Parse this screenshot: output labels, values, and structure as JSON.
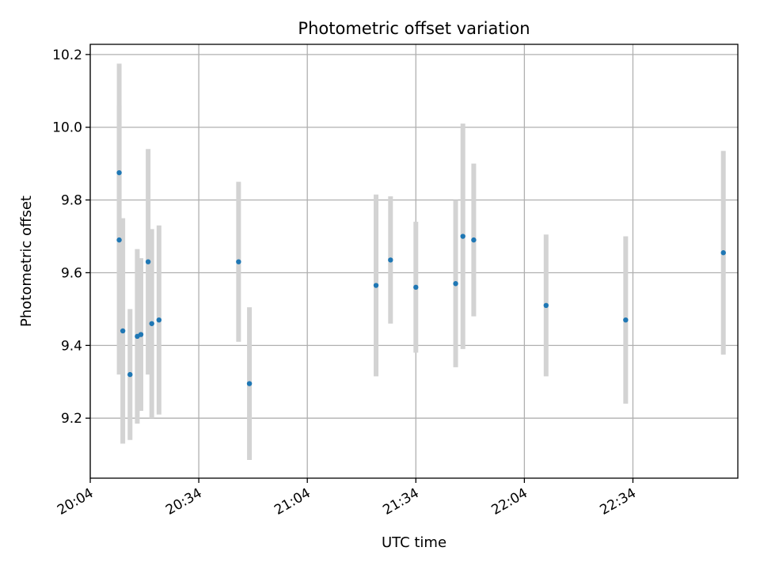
{
  "chart_data": {
    "type": "scatter",
    "title": "Photometric offset variation",
    "xlabel": "UTC time",
    "ylabel": "Photometric offset",
    "x_unit": "UTC time (HH:MM)",
    "xlim": [
      "20:04",
      "23:03"
    ],
    "ylim": [
      9.035,
      10.228
    ],
    "grid": true,
    "x_ticks": [
      "20:04",
      "20:34",
      "21:04",
      "21:34",
      "22:04",
      "22:34"
    ],
    "y_ticks": [
      9.2,
      9.4,
      9.6,
      9.8,
      10.0,
      10.2
    ],
    "y_tick_labels": [
      "9.2",
      "9.4",
      "9.6",
      "9.8",
      "10.0",
      "10.2"
    ],
    "colors": {
      "marker": "#1f77b4",
      "errorbar": "#d3d3d3",
      "grid": "#b0b0b0"
    },
    "series": [
      {
        "error_bars": true,
        "points": [
          {
            "x": "20:12",
            "y": 9.875,
            "err": 0.3
          },
          {
            "x": "20:12",
            "y": 9.69,
            "err": 0.37
          },
          {
            "x": "20:13",
            "y": 9.44,
            "err": 0.31
          },
          {
            "x": "20:15",
            "y": 9.32,
            "err": 0.18
          },
          {
            "x": "20:17",
            "y": 9.425,
            "err": 0.24
          },
          {
            "x": "20:18",
            "y": 9.43,
            "err": 0.21
          },
          {
            "x": "20:20",
            "y": 9.63,
            "err": 0.31
          },
          {
            "x": "20:21",
            "y": 9.46,
            "err": 0.26
          },
          {
            "x": "20:23",
            "y": 9.47,
            "err": 0.26
          },
          {
            "x": "20:45",
            "y": 9.63,
            "err": 0.22
          },
          {
            "x": "20:48",
            "y": 9.295,
            "err": 0.21
          },
          {
            "x": "21:23",
            "y": 9.565,
            "err": 0.25
          },
          {
            "x": "21:27",
            "y": 9.635,
            "err": 0.175
          },
          {
            "x": "21:34",
            "y": 9.56,
            "err": 0.18
          },
          {
            "x": "21:45",
            "y": 9.57,
            "err": 0.23
          },
          {
            "x": "21:47",
            "y": 9.7,
            "err": 0.31
          },
          {
            "x": "21:50",
            "y": 9.69,
            "err": 0.21
          },
          {
            "x": "22:10",
            "y": 9.51,
            "err": 0.195
          },
          {
            "x": "22:32",
            "y": 9.47,
            "err": 0.23
          },
          {
            "x": "22:59",
            "y": 9.655,
            "err": 0.28
          }
        ]
      }
    ]
  }
}
